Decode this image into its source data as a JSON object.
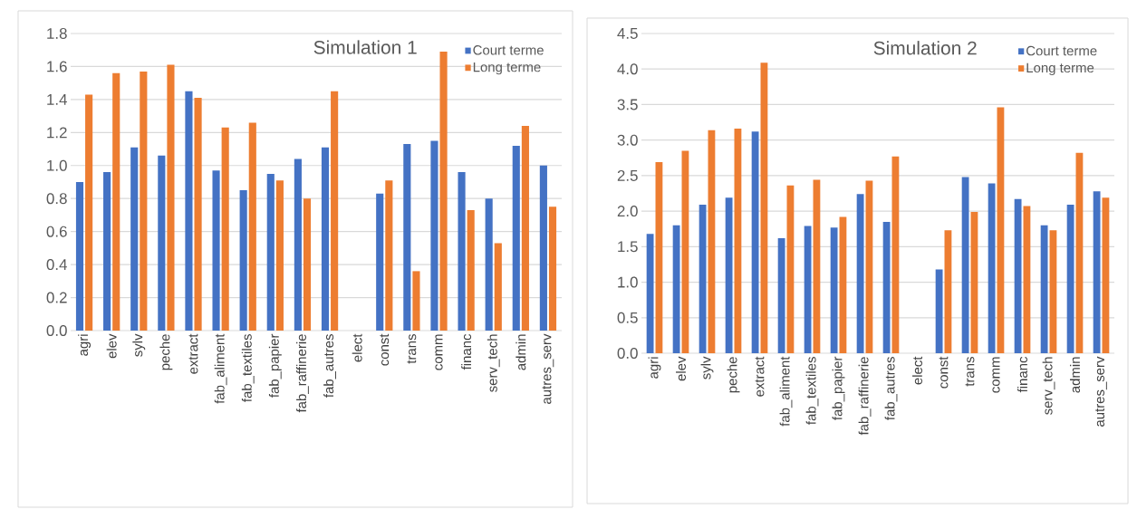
{
  "chart_data": [
    {
      "type": "bar",
      "title": "Simulation 1",
      "categories": [
        "agri",
        "elev",
        "sylv",
        "peche",
        "extract",
        "fab_aliment",
        "fab_textiles",
        "fab_papier",
        "fab_raffinerie",
        "fab_autres",
        "elect",
        "const",
        "trans",
        "comm",
        "financ",
        "serv_tech",
        "admin",
        "autres_serv"
      ],
      "series": [
        {
          "name": "Court terme",
          "color": "#4472c4",
          "values": [
            0.9,
            0.96,
            1.11,
            1.06,
            1.45,
            0.97,
            0.85,
            0.95,
            1.04,
            1.11,
            null,
            0.83,
            1.13,
            1.15,
            0.96,
            0.8,
            1.12,
            1.0
          ]
        },
        {
          "name": "Long terme",
          "color": "#ed7d31",
          "values": [
            1.43,
            1.56,
            1.57,
            1.61,
            1.41,
            1.23,
            1.26,
            0.91,
            0.8,
            1.45,
            null,
            0.91,
            0.36,
            1.69,
            0.73,
            0.53,
            1.24,
            0.75
          ]
        }
      ],
      "ylim": [
        0,
        1.8
      ],
      "yticks": [
        {
          "value": 0,
          "label": "0.0"
        },
        {
          "value": 0.2,
          "label": "0.2"
        },
        {
          "value": 0.4,
          "label": "0.4"
        },
        {
          "value": 0.6,
          "label": "0.6"
        },
        {
          "value": 0.8,
          "label": "0.8"
        },
        {
          "value": 1.0,
          "label": "1.0"
        },
        {
          "value": 1.2,
          "label": "1.2"
        },
        {
          "value": 1.4,
          "label": "1.4"
        },
        {
          "value": 1.6,
          "label": "1.6"
        },
        {
          "value": 1.8,
          "label": "1.8"
        }
      ],
      "grid": "y",
      "legend": "top right"
    },
    {
      "type": "bar",
      "title": "Simulation 2",
      "categories": [
        "agri",
        "elev",
        "sylv",
        "peche",
        "extract",
        "fab_aliment",
        "fab_textiles",
        "fab_papier",
        "fab_raffinerie",
        "fab_autres",
        "elect",
        "const",
        "trans",
        "comm",
        "financ",
        "serv_tech",
        "admin",
        "autres_serv"
      ],
      "series": [
        {
          "name": "Court terme",
          "color": "#4472c4",
          "values": [
            1.68,
            1.8,
            2.09,
            2.19,
            3.12,
            1.62,
            1.79,
            1.77,
            2.24,
            1.85,
            null,
            1.18,
            2.48,
            2.39,
            2.17,
            1.8,
            2.09,
            2.28
          ]
        },
        {
          "name": "Long terme",
          "color": "#ed7d31",
          "values": [
            2.69,
            2.85,
            3.14,
            3.16,
            4.09,
            2.36,
            2.44,
            1.92,
            2.43,
            2.77,
            null,
            1.73,
            1.99,
            3.46,
            2.07,
            1.73,
            2.82,
            2.19
          ]
        }
      ],
      "ylim": [
        0,
        4.5
      ],
      "yticks": [
        {
          "value": 0,
          "label": "0.0"
        },
        {
          "value": 0.5,
          "label": "0.5"
        },
        {
          "value": 1.0,
          "label": "1.0"
        },
        {
          "value": 1.5,
          "label": "1.5"
        },
        {
          "value": 2.0,
          "label": "2.0"
        },
        {
          "value": 2.5,
          "label": "2.5"
        },
        {
          "value": 3.0,
          "label": "3.0"
        },
        {
          "value": 3.5,
          "label": "3.5"
        },
        {
          "value": 4.0,
          "label": "4.0"
        },
        {
          "value": 4.5,
          "label": "4.5"
        }
      ],
      "grid": "y",
      "legend": "top right"
    }
  ]
}
